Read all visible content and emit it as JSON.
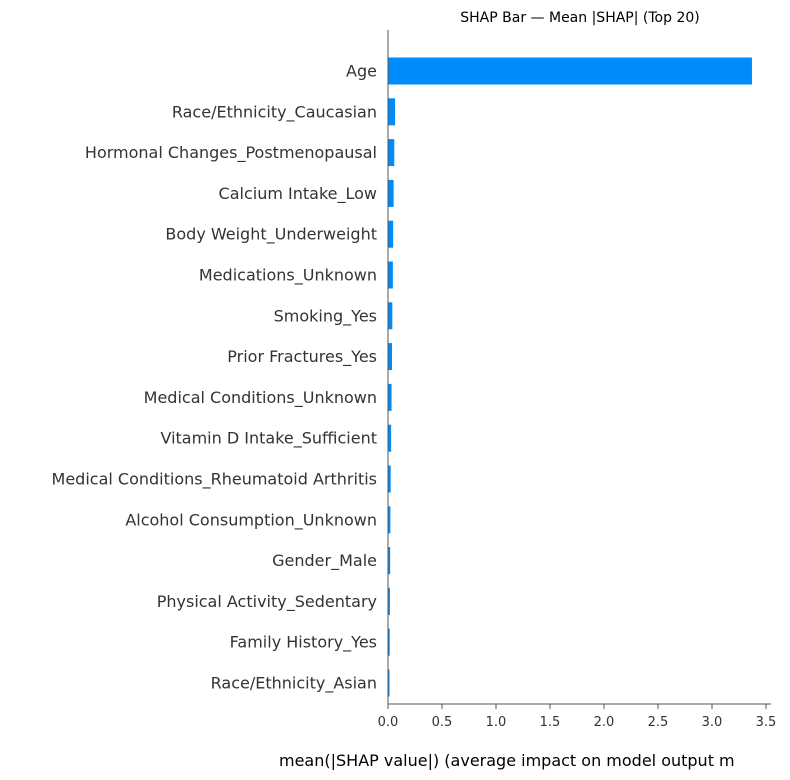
{
  "chart_data": {
    "type": "bar",
    "orientation": "horizontal",
    "title": "SHAP Bar — Mean |SHAP| (Top 20)",
    "xlabel": "mean(|SHAP value|) (average impact on model output m",
    "ylabel": "",
    "xlim": [
      0,
      3.5
    ],
    "xticks": [
      "0.0",
      "0.5",
      "1.0",
      "1.5",
      "2.0",
      "2.5",
      "3.0",
      "3.5"
    ],
    "grid": false,
    "bar_color": "#008bfb",
    "categories": [
      "Age",
      "Race/Ethnicity_Caucasian",
      "Hormonal Changes_Postmenopausal",
      "Calcium Intake_Low",
      "Body Weight_Underweight",
      "Medications_Unknown",
      "Smoking_Yes",
      "Prior Fractures_Yes",
      "Medical Conditions_Unknown",
      "Vitamin D Intake_Sufficient",
      "Medical Conditions_Rheumatoid Arthritis",
      "Alcohol Consumption_Unknown",
      "Gender_Male",
      "Physical Activity_Sedentary",
      "Family History_Yes",
      "Race/Ethnicity_Asian"
    ],
    "values": [
      3.37,
      0.065,
      0.058,
      0.052,
      0.048,
      0.045,
      0.04,
      0.037,
      0.033,
      0.029,
      0.025,
      0.022,
      0.02,
      0.018,
      0.016,
      0.01
    ]
  }
}
